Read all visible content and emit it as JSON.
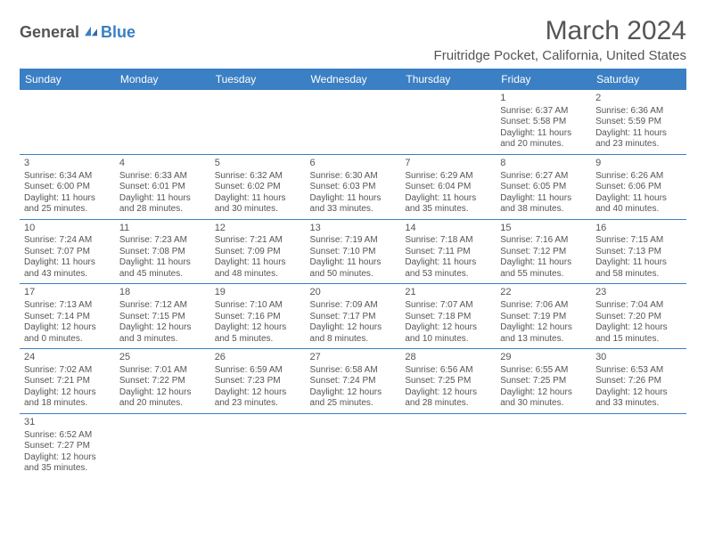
{
  "brand": {
    "general": "General",
    "blue": "Blue"
  },
  "title": "March 2024",
  "location": "Fruitridge Pocket, California, United States",
  "colors": {
    "accent": "#3b7fc4",
    "text": "#555555",
    "bg": "#ffffff"
  },
  "dayHeaders": [
    "Sunday",
    "Monday",
    "Tuesday",
    "Wednesday",
    "Thursday",
    "Friday",
    "Saturday"
  ],
  "weeks": [
    [
      null,
      null,
      null,
      null,
      null,
      {
        "n": "1",
        "sr": "Sunrise: 6:37 AM",
        "ss": "Sunset: 5:58 PM",
        "d1": "Daylight: 11 hours",
        "d2": "and 20 minutes."
      },
      {
        "n": "2",
        "sr": "Sunrise: 6:36 AM",
        "ss": "Sunset: 5:59 PM",
        "d1": "Daylight: 11 hours",
        "d2": "and 23 minutes."
      }
    ],
    [
      {
        "n": "3",
        "sr": "Sunrise: 6:34 AM",
        "ss": "Sunset: 6:00 PM",
        "d1": "Daylight: 11 hours",
        "d2": "and 25 minutes."
      },
      {
        "n": "4",
        "sr": "Sunrise: 6:33 AM",
        "ss": "Sunset: 6:01 PM",
        "d1": "Daylight: 11 hours",
        "d2": "and 28 minutes."
      },
      {
        "n": "5",
        "sr": "Sunrise: 6:32 AM",
        "ss": "Sunset: 6:02 PM",
        "d1": "Daylight: 11 hours",
        "d2": "and 30 minutes."
      },
      {
        "n": "6",
        "sr": "Sunrise: 6:30 AM",
        "ss": "Sunset: 6:03 PM",
        "d1": "Daylight: 11 hours",
        "d2": "and 33 minutes."
      },
      {
        "n": "7",
        "sr": "Sunrise: 6:29 AM",
        "ss": "Sunset: 6:04 PM",
        "d1": "Daylight: 11 hours",
        "d2": "and 35 minutes."
      },
      {
        "n": "8",
        "sr": "Sunrise: 6:27 AM",
        "ss": "Sunset: 6:05 PM",
        "d1": "Daylight: 11 hours",
        "d2": "and 38 minutes."
      },
      {
        "n": "9",
        "sr": "Sunrise: 6:26 AM",
        "ss": "Sunset: 6:06 PM",
        "d1": "Daylight: 11 hours",
        "d2": "and 40 minutes."
      }
    ],
    [
      {
        "n": "10",
        "sr": "Sunrise: 7:24 AM",
        "ss": "Sunset: 7:07 PM",
        "d1": "Daylight: 11 hours",
        "d2": "and 43 minutes."
      },
      {
        "n": "11",
        "sr": "Sunrise: 7:23 AM",
        "ss": "Sunset: 7:08 PM",
        "d1": "Daylight: 11 hours",
        "d2": "and 45 minutes."
      },
      {
        "n": "12",
        "sr": "Sunrise: 7:21 AM",
        "ss": "Sunset: 7:09 PM",
        "d1": "Daylight: 11 hours",
        "d2": "and 48 minutes."
      },
      {
        "n": "13",
        "sr": "Sunrise: 7:19 AM",
        "ss": "Sunset: 7:10 PM",
        "d1": "Daylight: 11 hours",
        "d2": "and 50 minutes."
      },
      {
        "n": "14",
        "sr": "Sunrise: 7:18 AM",
        "ss": "Sunset: 7:11 PM",
        "d1": "Daylight: 11 hours",
        "d2": "and 53 minutes."
      },
      {
        "n": "15",
        "sr": "Sunrise: 7:16 AM",
        "ss": "Sunset: 7:12 PM",
        "d1": "Daylight: 11 hours",
        "d2": "and 55 minutes."
      },
      {
        "n": "16",
        "sr": "Sunrise: 7:15 AM",
        "ss": "Sunset: 7:13 PM",
        "d1": "Daylight: 11 hours",
        "d2": "and 58 minutes."
      }
    ],
    [
      {
        "n": "17",
        "sr": "Sunrise: 7:13 AM",
        "ss": "Sunset: 7:14 PM",
        "d1": "Daylight: 12 hours",
        "d2": "and 0 minutes."
      },
      {
        "n": "18",
        "sr": "Sunrise: 7:12 AM",
        "ss": "Sunset: 7:15 PM",
        "d1": "Daylight: 12 hours",
        "d2": "and 3 minutes."
      },
      {
        "n": "19",
        "sr": "Sunrise: 7:10 AM",
        "ss": "Sunset: 7:16 PM",
        "d1": "Daylight: 12 hours",
        "d2": "and 5 minutes."
      },
      {
        "n": "20",
        "sr": "Sunrise: 7:09 AM",
        "ss": "Sunset: 7:17 PM",
        "d1": "Daylight: 12 hours",
        "d2": "and 8 minutes."
      },
      {
        "n": "21",
        "sr": "Sunrise: 7:07 AM",
        "ss": "Sunset: 7:18 PM",
        "d1": "Daylight: 12 hours",
        "d2": "and 10 minutes."
      },
      {
        "n": "22",
        "sr": "Sunrise: 7:06 AM",
        "ss": "Sunset: 7:19 PM",
        "d1": "Daylight: 12 hours",
        "d2": "and 13 minutes."
      },
      {
        "n": "23",
        "sr": "Sunrise: 7:04 AM",
        "ss": "Sunset: 7:20 PM",
        "d1": "Daylight: 12 hours",
        "d2": "and 15 minutes."
      }
    ],
    [
      {
        "n": "24",
        "sr": "Sunrise: 7:02 AM",
        "ss": "Sunset: 7:21 PM",
        "d1": "Daylight: 12 hours",
        "d2": "and 18 minutes."
      },
      {
        "n": "25",
        "sr": "Sunrise: 7:01 AM",
        "ss": "Sunset: 7:22 PM",
        "d1": "Daylight: 12 hours",
        "d2": "and 20 minutes."
      },
      {
        "n": "26",
        "sr": "Sunrise: 6:59 AM",
        "ss": "Sunset: 7:23 PM",
        "d1": "Daylight: 12 hours",
        "d2": "and 23 minutes."
      },
      {
        "n": "27",
        "sr": "Sunrise: 6:58 AM",
        "ss": "Sunset: 7:24 PM",
        "d1": "Daylight: 12 hours",
        "d2": "and 25 minutes."
      },
      {
        "n": "28",
        "sr": "Sunrise: 6:56 AM",
        "ss": "Sunset: 7:25 PM",
        "d1": "Daylight: 12 hours",
        "d2": "and 28 minutes."
      },
      {
        "n": "29",
        "sr": "Sunrise: 6:55 AM",
        "ss": "Sunset: 7:25 PM",
        "d1": "Daylight: 12 hours",
        "d2": "and 30 minutes."
      },
      {
        "n": "30",
        "sr": "Sunrise: 6:53 AM",
        "ss": "Sunset: 7:26 PM",
        "d1": "Daylight: 12 hours",
        "d2": "and 33 minutes."
      }
    ],
    [
      {
        "n": "31",
        "sr": "Sunrise: 6:52 AM",
        "ss": "Sunset: 7:27 PM",
        "d1": "Daylight: 12 hours",
        "d2": "and 35 minutes."
      },
      null,
      null,
      null,
      null,
      null,
      null
    ]
  ]
}
